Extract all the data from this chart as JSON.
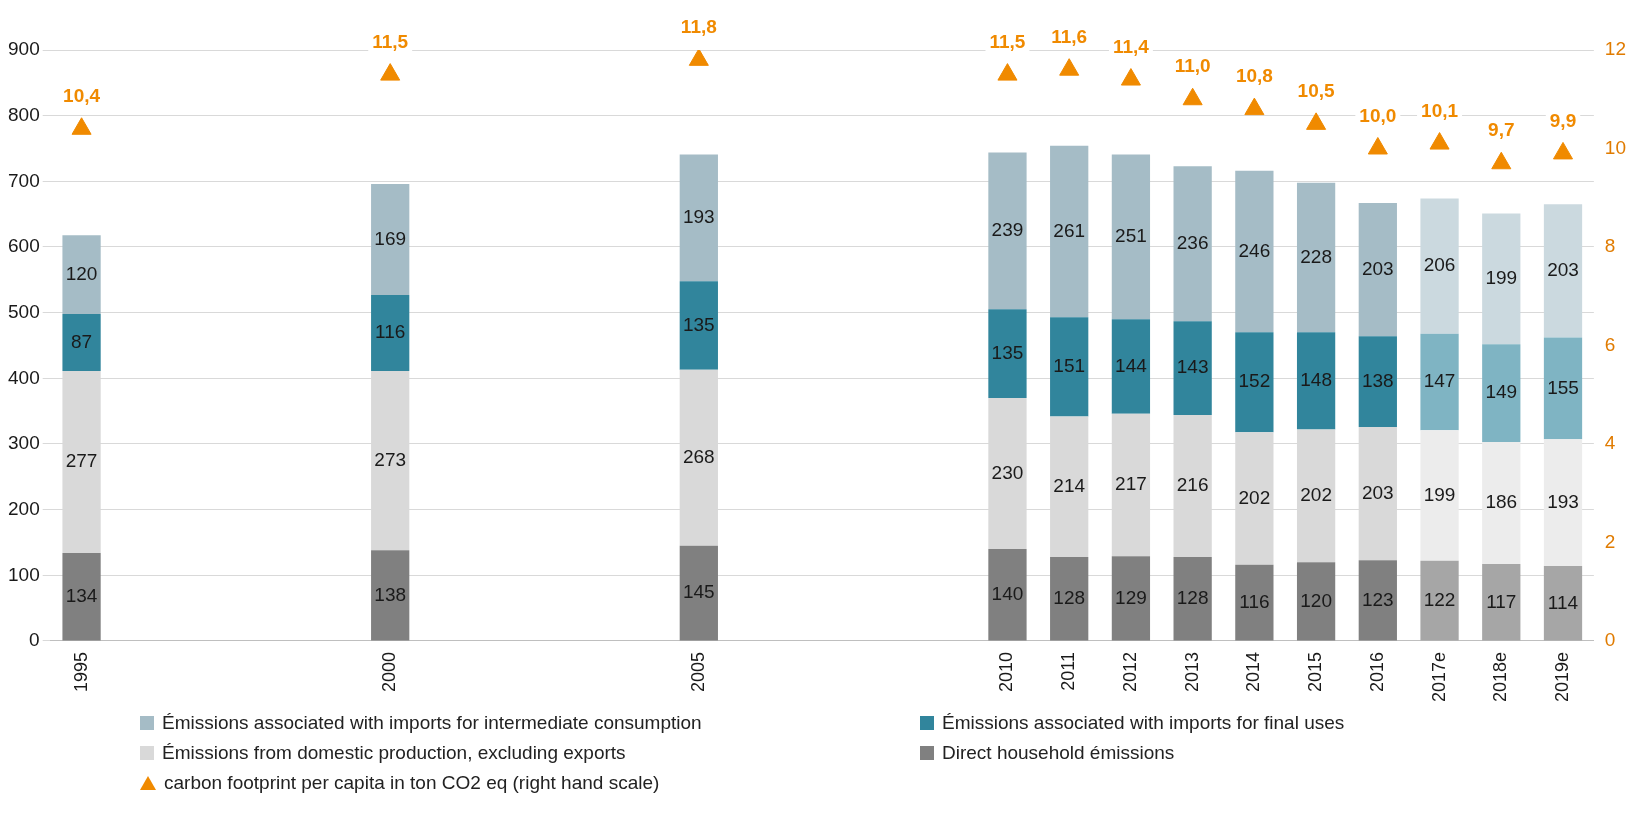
{
  "chart_data": {
    "type": "bar",
    "stacked": true,
    "data_labels": true,
    "grid": "y",
    "legend": "bottom",
    "categories": [
      "1995",
      null,
      null,
      null,
      null,
      "2000",
      null,
      null,
      null,
      null,
      "2005",
      null,
      null,
      null,
      null,
      "2010",
      "2011",
      "2012",
      "2013",
      "2014",
      "2015",
      "2016",
      "2017e",
      "2018e",
      "2019e"
    ],
    "ylim": [
      0,
      900
    ],
    "yticks": [
      0,
      100,
      200,
      300,
      400,
      500,
      600,
      700,
      800,
      900
    ],
    "y2lim": [
      0,
      12
    ],
    "y2ticks": [
      0,
      2,
      4,
      6,
      8,
      10,
      12
    ],
    "series": [
      {
        "name": "Direct household émissions",
        "color": "#808080",
        "colors": [
          "#808080",
          null,
          null,
          null,
          null,
          "#808080",
          null,
          null,
          null,
          null,
          "#808080",
          null,
          null,
          null,
          null,
          "#808080",
          "#808080",
          "#808080",
          "#808080",
          "#808080",
          "#808080",
          "#808080",
          "#a6a6a6",
          "#a6a6a6",
          "#a6a6a6"
        ],
        "values": [
          134,
          null,
          null,
          null,
          null,
          138,
          null,
          null,
          null,
          null,
          145,
          null,
          null,
          null,
          null,
          140,
          128,
          129,
          128,
          116,
          120,
          123,
          122,
          117,
          114
        ]
      },
      {
        "name": "Émissions from domestic production, excluding exports",
        "color": "#d9d9d9",
        "colors": [
          "#d9d9d9",
          null,
          null,
          null,
          null,
          "#d9d9d9",
          null,
          null,
          null,
          null,
          "#d9d9d9",
          null,
          null,
          null,
          null,
          "#d9d9d9",
          "#d9d9d9",
          "#d9d9d9",
          "#d9d9d9",
          "#d9d9d9",
          "#d9d9d9",
          "#d9d9d9",
          "#ececec",
          "#ececec",
          "#ececec"
        ],
        "values": [
          277,
          null,
          null,
          null,
          null,
          273,
          null,
          null,
          null,
          null,
          268,
          null,
          null,
          null,
          null,
          230,
          214,
          217,
          216,
          202,
          202,
          203,
          199,
          186,
          193
        ]
      },
      {
        "name": "Émissions associated with imports for final uses",
        "color": "#31859c",
        "colors": [
          "#31859c",
          null,
          null,
          null,
          null,
          "#31859c",
          null,
          null,
          null,
          null,
          "#31859c",
          null,
          null,
          null,
          null,
          "#31859c",
          "#31859c",
          "#31859c",
          "#31859c",
          "#31859c",
          "#31859c",
          "#31859c",
          "#7fb4c3",
          "#7fb4c3",
          "#7fb4c3"
        ],
        "values": [
          87,
          null,
          null,
          null,
          null,
          116,
          null,
          null,
          null,
          null,
          135,
          null,
          null,
          null,
          null,
          135,
          151,
          144,
          143,
          152,
          148,
          138,
          147,
          149,
          155
        ]
      },
      {
        "name": "Émissions associated with imports for intermediate consumption",
        "color": "#a5bcc6",
        "colors": [
          "#a5bcc6",
          null,
          null,
          null,
          null,
          "#a5bcc6",
          null,
          null,
          null,
          null,
          "#a5bcc6",
          null,
          null,
          null,
          null,
          "#a5bcc6",
          "#a5bcc6",
          "#a5bcc6",
          "#a5bcc6",
          "#a5bcc6",
          "#a5bcc6",
          "#a5bcc6",
          "#cbd9df",
          "#cbd9df",
          "#cbd9df"
        ],
        "values": [
          120,
          null,
          null,
          null,
          null,
          169,
          null,
          null,
          null,
          null,
          193,
          null,
          null,
          null,
          null,
          239,
          261,
          251,
          236,
          246,
          228,
          203,
          206,
          199,
          203
        ]
      },
      {
        "name": "carbon footprint per capita in ton  CO2 eq (right hand scale)",
        "type": "scatter",
        "axis": "y2",
        "marker": "triangle",
        "color": "#f08a00",
        "values": [
          10.4,
          null,
          null,
          null,
          null,
          11.5,
          null,
          null,
          null,
          null,
          11.8,
          null,
          null,
          null,
          null,
          11.5,
          11.6,
          11.4,
          11.0,
          10.8,
          10.5,
          10.0,
          10.1,
          9.7,
          9.9
        ],
        "value_labels": [
          "10,4",
          null,
          null,
          null,
          null,
          "11,5",
          null,
          null,
          null,
          null,
          "11,8",
          null,
          null,
          null,
          null,
          "11,5",
          "11,6",
          "11,4",
          "11,0",
          "10,8",
          "10,5",
          "10,0",
          "10,1",
          "9,7",
          "9,9"
        ]
      }
    ]
  }
}
